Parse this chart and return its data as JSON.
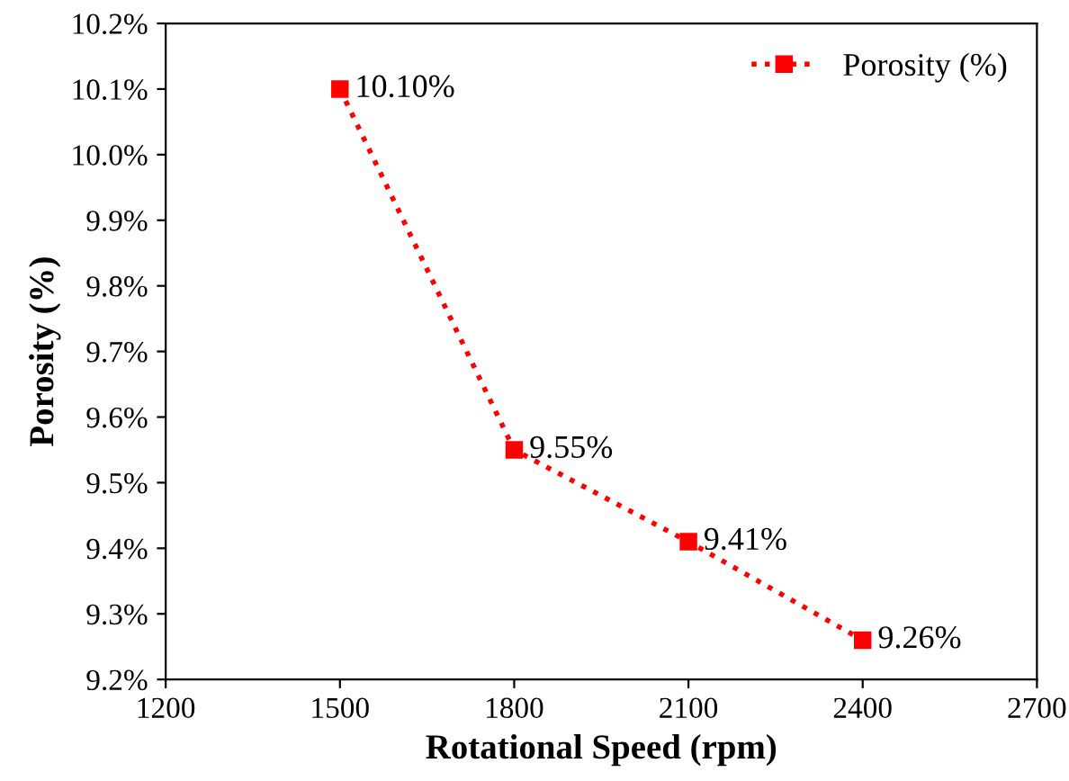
{
  "chart_data": {
    "type": "line",
    "xlabel": "Rotational Speed (rpm)",
    "ylabel": "Porosity (%)",
    "x": [
      1500,
      1800,
      2100,
      2400
    ],
    "series": [
      {
        "name": "Porosity (%)",
        "color": "#ff0000",
        "values": [
          10.1,
          9.55,
          9.41,
          9.26
        ],
        "value_labels": [
          "10.10%",
          "9.55%",
          "9.41%",
          "9.26%"
        ]
      }
    ],
    "xlim": [
      1200,
      2700
    ],
    "xticks": [
      1200,
      1500,
      1800,
      2100,
      2400,
      2700
    ],
    "ylim": [
      9.2,
      10.2
    ],
    "yticks": [
      {
        "value": 9.2,
        "label": "9.2%"
      },
      {
        "value": 9.3,
        "label": "9.3%"
      },
      {
        "value": 9.4,
        "label": "9.4%"
      },
      {
        "value": 9.5,
        "label": "9.5%"
      },
      {
        "value": 9.6,
        "label": "9.6%"
      },
      {
        "value": 9.7,
        "label": "9.7%"
      },
      {
        "value": 9.8,
        "label": "9.8%"
      },
      {
        "value": 9.9,
        "label": "9.9%"
      },
      {
        "value": 10.0,
        "label": "10.0%"
      },
      {
        "value": 10.1,
        "label": "10.1%"
      },
      {
        "value": 10.2,
        "label": "10.2%"
      }
    ],
    "grid": false,
    "legend": "top right",
    "marker": "square",
    "line_style": "dotted"
  }
}
